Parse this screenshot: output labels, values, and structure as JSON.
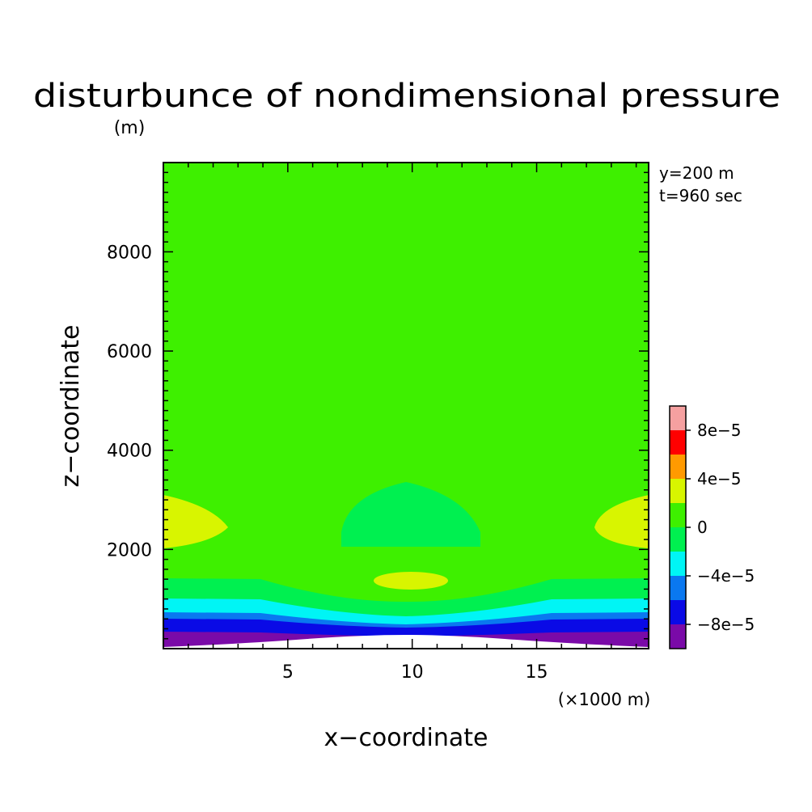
{
  "chart_data": {
    "type": "heatmap",
    "title": "disturbunce of nondimensional pressure",
    "ylabel_unit": "(m)",
    "xlabel": "x−coordinate",
    "ylabel": "z−coordinate",
    "xlabel_unit": "(×1000 m)",
    "annotations": [
      "y=200 m",
      "t=960 sec"
    ],
    "xlim": [
      0,
      19.5
    ],
    "ylim": [
      0,
      9800
    ],
    "x_ticks": [
      5,
      10,
      15
    ],
    "y_ticks": [
      2000,
      4000,
      6000,
      8000
    ],
    "colorbar": {
      "levels": [
        -0.0001,
        -8e-05,
        -6e-05,
        -4e-05,
        -2e-05,
        0,
        2e-05,
        4e-05,
        6e-05,
        8e-05,
        0.0001
      ],
      "colors": [
        "#7a0aa8",
        "#0a0ae6",
        "#0a78f0",
        "#00f5f5",
        "#00f050",
        "#3ef000",
        "#d8f500",
        "#ff9a00",
        "#ff0000",
        "#f5a0a0"
      ],
      "tick_labels": [
        "−8e−5",
        "−4e−5",
        "0",
        "4e−5",
        "8e−5"
      ],
      "tick_values": [
        -8e-05,
        -4e-05,
        0,
        4e-05,
        8e-05
      ]
    },
    "background_band": "0 to 2e-5",
    "layers": [
      {
        "name": "mountain-terrain",
        "color": "#ffffff"
      }
    ]
  }
}
